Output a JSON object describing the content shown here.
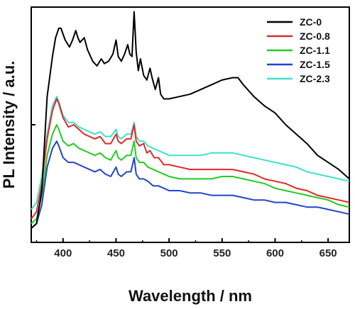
{
  "chart_data": {
    "type": "line",
    "title": "",
    "xlabel": "Wavelength / nm",
    "ylabel": "PL Intensity / a.u.",
    "xlim": [
      370,
      670
    ],
    "ylim": [
      0,
      100
    ],
    "x_ticks": [
      400,
      450,
      500,
      550,
      600,
      650
    ],
    "y_ticks_labeled": false,
    "grid": false,
    "legend_position": "top-right",
    "series": [
      {
        "name": "ZC-0",
        "color": "#000000",
        "points": [
          [
            370,
            6
          ],
          [
            375,
            8
          ],
          [
            380,
            22
          ],
          [
            385,
            62
          ],
          [
            390,
            79
          ],
          [
            393,
            87
          ],
          [
            396,
            91
          ],
          [
            398,
            91
          ],
          [
            402,
            86
          ],
          [
            406,
            83
          ],
          [
            409,
            86
          ],
          [
            412,
            90
          ],
          [
            414,
            87
          ],
          [
            416,
            85
          ],
          [
            420,
            87
          ],
          [
            423,
            82
          ],
          [
            428,
            77
          ],
          [
            432,
            75
          ],
          [
            436,
            78
          ],
          [
            439,
            76
          ],
          [
            443,
            77
          ],
          [
            447,
            80
          ],
          [
            450,
            86
          ],
          [
            452,
            79
          ],
          [
            455,
            77
          ],
          [
            458,
            80
          ],
          [
            461,
            84
          ],
          [
            463,
            80
          ],
          [
            465,
            79
          ],
          [
            467,
            98
          ],
          [
            469,
            81
          ],
          [
            471,
            73
          ],
          [
            473,
            78
          ],
          [
            476,
            71
          ],
          [
            479,
            69
          ],
          [
            482,
            74
          ],
          [
            484,
            70
          ],
          [
            487,
            65
          ],
          [
            490,
            70
          ],
          [
            492,
            63
          ],
          [
            495,
            61
          ],
          [
            500,
            61
          ],
          [
            510,
            62
          ],
          [
            520,
            63
          ],
          [
            530,
            65
          ],
          [
            540,
            67
          ],
          [
            550,
            69
          ],
          [
            560,
            70
          ],
          [
            565,
            70
          ],
          [
            570,
            67
          ],
          [
            580,
            62
          ],
          [
            590,
            58
          ],
          [
            600,
            55
          ],
          [
            610,
            50
          ],
          [
            620,
            46
          ],
          [
            630,
            42
          ],
          [
            640,
            37
          ],
          [
            650,
            34
          ],
          [
            660,
            31
          ],
          [
            670,
            27
          ]
        ]
      },
      {
        "name": "ZC-0.8",
        "color": "#e02a2a",
        "points": [
          [
            370,
            10
          ],
          [
            375,
            13
          ],
          [
            380,
            25
          ],
          [
            385,
            44
          ],
          [
            390,
            56
          ],
          [
            394,
            61
          ],
          [
            396,
            59
          ],
          [
            400,
            53
          ],
          [
            405,
            49
          ],
          [
            410,
            50
          ],
          [
            415,
            48
          ],
          [
            420,
            46
          ],
          [
            425,
            45
          ],
          [
            430,
            44
          ],
          [
            435,
            45
          ],
          [
            440,
            42
          ],
          [
            445,
            42
          ],
          [
            450,
            46
          ],
          [
            452,
            43
          ],
          [
            455,
            42
          ],
          [
            460,
            44
          ],
          [
            464,
            44
          ],
          [
            467,
            50
          ],
          [
            469,
            43
          ],
          [
            472,
            41
          ],
          [
            476,
            42
          ],
          [
            479,
            38
          ],
          [
            482,
            39
          ],
          [
            486,
            36
          ],
          [
            490,
            36
          ],
          [
            495,
            33
          ],
          [
            500,
            33
          ],
          [
            510,
            32
          ],
          [
            520,
            31
          ],
          [
            530,
            31
          ],
          [
            540,
            31
          ],
          [
            550,
            31
          ],
          [
            560,
            31
          ],
          [
            570,
            30
          ],
          [
            580,
            29
          ],
          [
            590,
            27
          ],
          [
            600,
            26
          ],
          [
            610,
            25
          ],
          [
            620,
            23
          ],
          [
            630,
            22
          ],
          [
            640,
            20
          ],
          [
            650,
            19
          ],
          [
            660,
            18
          ],
          [
            670,
            17
          ]
        ]
      },
      {
        "name": "ZC-1.1",
        "color": "#22cc22",
        "points": [
          [
            370,
            8
          ],
          [
            375,
            10
          ],
          [
            380,
            20
          ],
          [
            385,
            37
          ],
          [
            390,
            46
          ],
          [
            394,
            50
          ],
          [
            396,
            48
          ],
          [
            400,
            43
          ],
          [
            405,
            41
          ],
          [
            410,
            42
          ],
          [
            415,
            40
          ],
          [
            420,
            39
          ],
          [
            425,
            38
          ],
          [
            430,
            37
          ],
          [
            435,
            38
          ],
          [
            440,
            36
          ],
          [
            445,
            35
          ],
          [
            450,
            39
          ],
          [
            452,
            36
          ],
          [
            455,
            35
          ],
          [
            460,
            37
          ],
          [
            464,
            37
          ],
          [
            467,
            43
          ],
          [
            469,
            36
          ],
          [
            472,
            34
          ],
          [
            476,
            34
          ],
          [
            480,
            32
          ],
          [
            485,
            31
          ],
          [
            490,
            30
          ],
          [
            495,
            29
          ],
          [
            500,
            28
          ],
          [
            510,
            27
          ],
          [
            520,
            27
          ],
          [
            530,
            27
          ],
          [
            540,
            27
          ],
          [
            550,
            28
          ],
          [
            560,
            28
          ],
          [
            570,
            27
          ],
          [
            580,
            26
          ],
          [
            590,
            25
          ],
          [
            600,
            23
          ],
          [
            610,
            22
          ],
          [
            620,
            21
          ],
          [
            630,
            20
          ],
          [
            640,
            19
          ],
          [
            650,
            18
          ],
          [
            660,
            16
          ],
          [
            670,
            15
          ]
        ]
      },
      {
        "name": "ZC-1.5",
        "color": "#2244cc",
        "points": [
          [
            370,
            6
          ],
          [
            375,
            8
          ],
          [
            380,
            16
          ],
          [
            385,
            32
          ],
          [
            390,
            40
          ],
          [
            394,
            43
          ],
          [
            396,
            41
          ],
          [
            400,
            36
          ],
          [
            405,
            34
          ],
          [
            410,
            34
          ],
          [
            415,
            33
          ],
          [
            420,
            32
          ],
          [
            425,
            31
          ],
          [
            430,
            30
          ],
          [
            435,
            31
          ],
          [
            440,
            29
          ],
          [
            445,
            28
          ],
          [
            450,
            32
          ],
          [
            452,
            29
          ],
          [
            455,
            28
          ],
          [
            460,
            30
          ],
          [
            464,
            30
          ],
          [
            467,
            36
          ],
          [
            469,
            29
          ],
          [
            472,
            27
          ],
          [
            476,
            27
          ],
          [
            480,
            26
          ],
          [
            485,
            24
          ],
          [
            490,
            24
          ],
          [
            495,
            23
          ],
          [
            500,
            22
          ],
          [
            510,
            22
          ],
          [
            520,
            21
          ],
          [
            530,
            21
          ],
          [
            540,
            20
          ],
          [
            550,
            20
          ],
          [
            560,
            20
          ],
          [
            570,
            19
          ],
          [
            580,
            18
          ],
          [
            590,
            18
          ],
          [
            600,
            17
          ],
          [
            610,
            17
          ],
          [
            620,
            16
          ],
          [
            630,
            15
          ],
          [
            640,
            15
          ],
          [
            650,
            14
          ],
          [
            660,
            13
          ],
          [
            670,
            12
          ]
        ]
      },
      {
        "name": "ZC-2.3",
        "color": "#3fe0cc",
        "points": [
          [
            370,
            14
          ],
          [
            375,
            17
          ],
          [
            380,
            28
          ],
          [
            385,
            46
          ],
          [
            390,
            58
          ],
          [
            394,
            62
          ],
          [
            396,
            60
          ],
          [
            400,
            54
          ],
          [
            405,
            51
          ],
          [
            410,
            51
          ],
          [
            415,
            49
          ],
          [
            420,
            48
          ],
          [
            425,
            47
          ],
          [
            430,
            46
          ],
          [
            435,
            47
          ],
          [
            440,
            45
          ],
          [
            445,
            45
          ],
          [
            450,
            48
          ],
          [
            452,
            45
          ],
          [
            455,
            44
          ],
          [
            460,
            46
          ],
          [
            464,
            46
          ],
          [
            467,
            51
          ],
          [
            469,
            45
          ],
          [
            472,
            43
          ],
          [
            476,
            43
          ],
          [
            480,
            41
          ],
          [
            485,
            40
          ],
          [
            490,
            39
          ],
          [
            495,
            38
          ],
          [
            500,
            37
          ],
          [
            510,
            37
          ],
          [
            520,
            37
          ],
          [
            530,
            37
          ],
          [
            540,
            38
          ],
          [
            550,
            38
          ],
          [
            560,
            38
          ],
          [
            570,
            37
          ],
          [
            580,
            36
          ],
          [
            590,
            35
          ],
          [
            600,
            34
          ],
          [
            610,
            33
          ],
          [
            620,
            32
          ],
          [
            630,
            30
          ],
          [
            640,
            29
          ],
          [
            650,
            28
          ],
          [
            660,
            27
          ],
          [
            670,
            26
          ]
        ]
      }
    ]
  }
}
